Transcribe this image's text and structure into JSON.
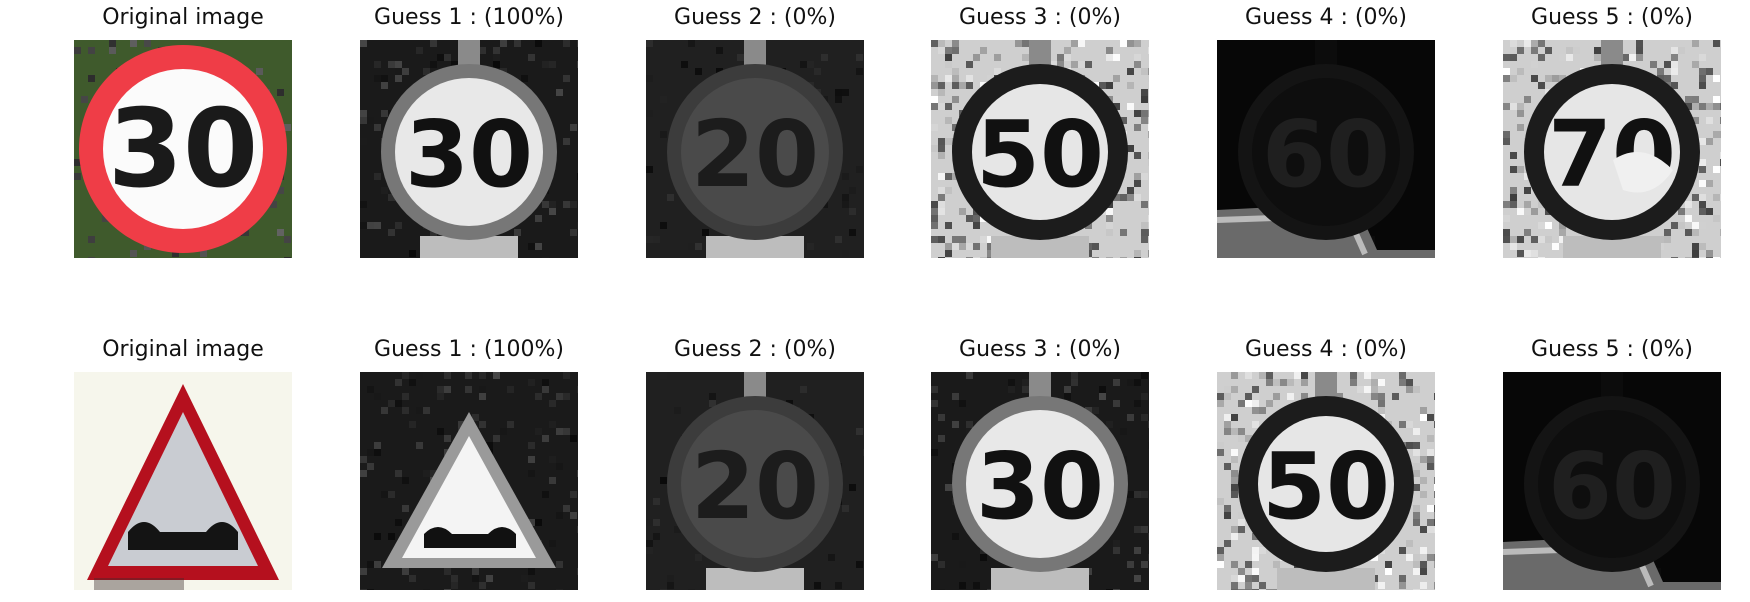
{
  "rows": [
    {
      "panels": [
        {
          "title": "Original image",
          "sign": "speed-30",
          "style": "color"
        },
        {
          "title": "Guess 1 : (100%)",
          "sign": "speed-30",
          "style": "gray"
        },
        {
          "title": "Guess 2 : (0%)",
          "sign": "speed-20",
          "style": "dark"
        },
        {
          "title": "Guess 3 : (0%)",
          "sign": "speed-50",
          "style": "noisy"
        },
        {
          "title": "Guess 4 : (0%)",
          "sign": "speed-60",
          "style": "verydark"
        },
        {
          "title": "Guess 5 : (0%)",
          "sign": "speed-70",
          "style": "noisy"
        }
      ]
    },
    {
      "panels": [
        {
          "title": "Original image",
          "sign": "bumpy-road",
          "style": "color"
        },
        {
          "title": "Guess 1 : (100%)",
          "sign": "bumpy-road",
          "style": "gray"
        },
        {
          "title": "Guess 2 : (0%)",
          "sign": "speed-20",
          "style": "dark"
        },
        {
          "title": "Guess 3 : (0%)",
          "sign": "speed-30",
          "style": "gray"
        },
        {
          "title": "Guess 4 : (0%)",
          "sign": "speed-50",
          "style": "noisy"
        },
        {
          "title": "Guess 5 : (0%)",
          "sign": "speed-60",
          "style": "verydark"
        }
      ]
    }
  ],
  "sign_numbers": {
    "speed-20": "20",
    "speed-30": "30",
    "speed-50": "50",
    "speed-60": "60",
    "speed-70": "70"
  }
}
